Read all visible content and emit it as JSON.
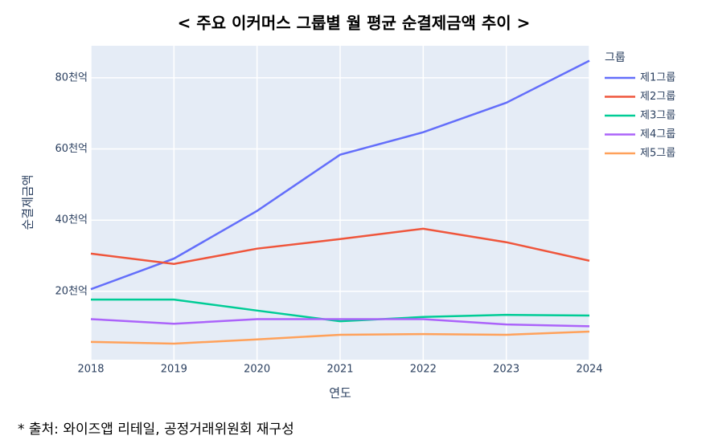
{
  "chart_data": {
    "type": "line",
    "title": "< 주요 이커머스 그룹별 월 평균 순결제금액 추이 >",
    "x_label": "연도",
    "y_label": "순결제금액",
    "legend_title": "그룹",
    "source": "* 출처: 와이즈앱 리테일, 공정거래위원회 재구성",
    "x": [
      2018,
      2019,
      2020,
      2021,
      2022,
      2023,
      2024
    ],
    "xlim": [
      2018,
      2024
    ],
    "xticks": [
      2018,
      2019,
      2020,
      2021,
      2022,
      2023,
      2024
    ],
    "ylim": [
      0.8,
      89
    ],
    "yticks": [
      {
        "value": 20,
        "label": "20천억"
      },
      {
        "value": 40,
        "label": "40천억"
      },
      {
        "value": 60,
        "label": "60천억"
      },
      {
        "value": 80,
        "label": "80천억"
      }
    ],
    "grid": true,
    "legend": "right",
    "series": [
      {
        "name": "제1그룹",
        "color": "#636efa",
        "values": [
          20.6,
          29.2,
          42.6,
          58.4,
          64.7,
          73.0,
          84.8
        ]
      },
      {
        "name": "제2그룹",
        "color": "#ef553b",
        "values": [
          30.6,
          27.7,
          32.0,
          34.7,
          37.6,
          33.8,
          28.6
        ]
      },
      {
        "name": "제3그룹",
        "color": "#00cc96",
        "values": [
          17.7,
          17.7,
          14.6,
          11.6,
          12.8,
          13.4,
          13.2
        ]
      },
      {
        "name": "제4그룹",
        "color": "#ab63fa",
        "values": [
          12.2,
          10.9,
          12.2,
          12.2,
          12.2,
          10.7,
          10.2
        ]
      },
      {
        "name": "제5그룹",
        "color": "#ffa15a",
        "values": [
          5.8,
          5.3,
          6.5,
          7.8,
          8.0,
          7.8,
          8.7
        ]
      }
    ]
  }
}
